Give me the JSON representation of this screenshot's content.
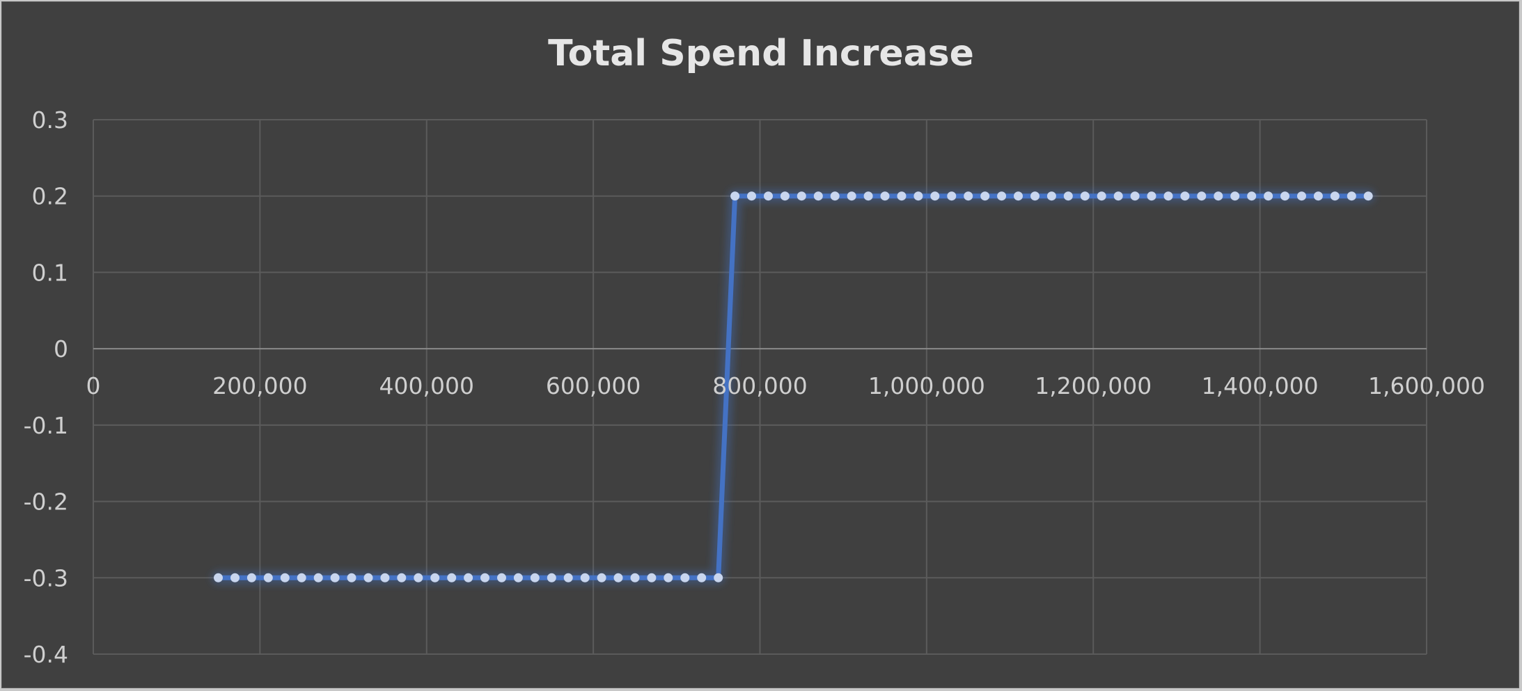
{
  "chart_data": {
    "type": "line",
    "title": "Total Spend Increase",
    "xlabel": "",
    "ylabel": "",
    "xlim": [
      0,
      1600000
    ],
    "ylim": [
      -0.4,
      0.3
    ],
    "x_ticks": [
      0,
      200000,
      400000,
      600000,
      800000,
      1000000,
      1200000,
      1400000,
      1600000
    ],
    "x_tick_labels": [
      "0",
      "200,000",
      "400,000",
      "600,000",
      "800,000",
      "1,000,000",
      "1,200,000",
      "1,400,000",
      "1,600,000"
    ],
    "y_ticks": [
      0.3,
      0.2,
      0.1,
      0,
      -0.1,
      -0.2,
      -0.3,
      -0.4
    ],
    "y_tick_labels": [
      "0.3",
      "0.2",
      "0.1",
      "0",
      "-0.1",
      "-0.2",
      "-0.3",
      "-0.4"
    ],
    "grid": true,
    "legend": "none",
    "series": [
      {
        "color": "#4472c4",
        "marker_color": "#c9d6ee",
        "points": [
          [
            150000,
            -0.3
          ],
          [
            170000,
            -0.3
          ],
          [
            190000,
            -0.3
          ],
          [
            210000,
            -0.3
          ],
          [
            230000,
            -0.3
          ],
          [
            250000,
            -0.3
          ],
          [
            270000,
            -0.3
          ],
          [
            290000,
            -0.3
          ],
          [
            310000,
            -0.3
          ],
          [
            330000,
            -0.3
          ],
          [
            350000,
            -0.3
          ],
          [
            370000,
            -0.3
          ],
          [
            390000,
            -0.3
          ],
          [
            410000,
            -0.3
          ],
          [
            430000,
            -0.3
          ],
          [
            450000,
            -0.3
          ],
          [
            470000,
            -0.3
          ],
          [
            490000,
            -0.3
          ],
          [
            510000,
            -0.3
          ],
          [
            530000,
            -0.3
          ],
          [
            550000,
            -0.3
          ],
          [
            570000,
            -0.3
          ],
          [
            590000,
            -0.3
          ],
          [
            610000,
            -0.3
          ],
          [
            630000,
            -0.3
          ],
          [
            650000,
            -0.3
          ],
          [
            670000,
            -0.3
          ],
          [
            690000,
            -0.3
          ],
          [
            710000,
            -0.3
          ],
          [
            730000,
            -0.3
          ],
          [
            750000,
            -0.3
          ],
          [
            770000,
            0.2
          ],
          [
            790000,
            0.2
          ],
          [
            810000,
            0.2
          ],
          [
            830000,
            0.2
          ],
          [
            850000,
            0.2
          ],
          [
            870000,
            0.2
          ],
          [
            890000,
            0.2
          ],
          [
            910000,
            0.2
          ],
          [
            930000,
            0.2
          ],
          [
            950000,
            0.2
          ],
          [
            970000,
            0.2
          ],
          [
            990000,
            0.2
          ],
          [
            1010000,
            0.2
          ],
          [
            1030000,
            0.2
          ],
          [
            1050000,
            0.2
          ],
          [
            1070000,
            0.2
          ],
          [
            1090000,
            0.2
          ],
          [
            1110000,
            0.2
          ],
          [
            1130000,
            0.2
          ],
          [
            1150000,
            0.2
          ],
          [
            1170000,
            0.2
          ],
          [
            1190000,
            0.2
          ],
          [
            1210000,
            0.2
          ],
          [
            1230000,
            0.2
          ],
          [
            1250000,
            0.2
          ],
          [
            1270000,
            0.2
          ],
          [
            1290000,
            0.2
          ],
          [
            1310000,
            0.2
          ],
          [
            1330000,
            0.2
          ],
          [
            1350000,
            0.2
          ],
          [
            1370000,
            0.2
          ],
          [
            1390000,
            0.2
          ],
          [
            1410000,
            0.2
          ],
          [
            1430000,
            0.2
          ],
          [
            1450000,
            0.2
          ],
          [
            1470000,
            0.2
          ],
          [
            1490000,
            0.2
          ],
          [
            1510000,
            0.2
          ],
          [
            1530000,
            0.2
          ]
        ]
      }
    ]
  }
}
